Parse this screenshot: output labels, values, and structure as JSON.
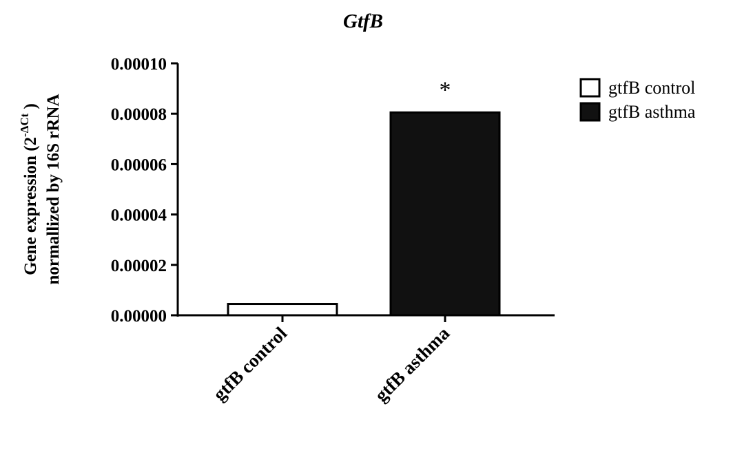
{
  "chart_data": {
    "type": "bar",
    "title": "GtfB",
    "categories": [
      "gtfB control",
      "gtfB asthma"
    ],
    "values": [
      4.5e-06,
      8.05e-05
    ],
    "bar_fills": [
      "#ffffff",
      "#111111"
    ],
    "ylabel": {
      "line1_prefix": "Gene expression (2",
      "line1_sup": "-ΔCt",
      "line1_suffix": " )",
      "line2": "normallized by 16S rRNA"
    },
    "ylim": [
      0,
      0.0001
    ],
    "yticks": [
      "0.00000",
      "0.00002",
      "0.00004",
      "0.00006",
      "0.00008",
      "0.00010"
    ],
    "legend": [
      {
        "label": "gtfB control",
        "fill": "#ffffff"
      },
      {
        "label": "gtfB asthma",
        "fill": "#111111"
      }
    ],
    "legend_position": "top-right",
    "annotations": [
      {
        "category": "gtfB asthma",
        "text": "*"
      }
    ],
    "grid": false
  }
}
